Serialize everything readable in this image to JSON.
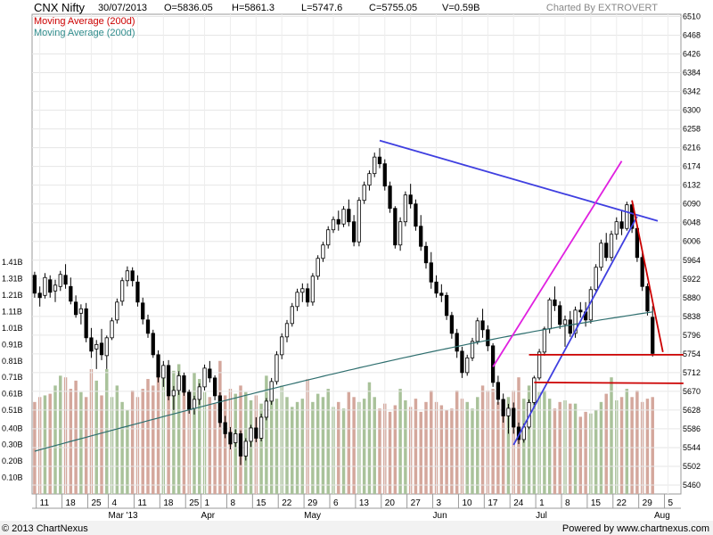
{
  "header": {
    "symbol": "CNX Nifty",
    "date": "30/07/2013",
    "open": "O=5836.05",
    "high": "H=5861.3",
    "low": "L=5747.6",
    "close": "C=5755.05",
    "volume": "V=0.59B",
    "charted_by": "Charted By EXTROVERT"
  },
  "legend": [
    {
      "label": "Moving Average (200d)",
      "color": "#cc0000"
    },
    {
      "label": "Moving Average (200d)",
      "color": "#2e8b8b"
    }
  ],
  "footer": {
    "copyright": "© 2013 ChartNexus",
    "powered": "Powered by www.chartnexus.com"
  },
  "colors": {
    "up_body": "#ffffff",
    "down_body": "#000000",
    "vol_up": "#a9c29a",
    "vol_down": "#d4a79c",
    "ma_line": "#2e6e6e",
    "trend_blue": "#3f3fe0",
    "trend_magenta": "#e020e0",
    "trend_red": "#cc0000"
  },
  "chart_data": {
    "type": "candlestick",
    "price_axis": {
      "ticks": [
        5460,
        5502,
        5544,
        5586,
        5628,
        5670,
        5712,
        5754,
        5796,
        5838,
        5880,
        5922,
        5964,
        6006,
        6048,
        6090,
        6132,
        6174,
        6216,
        6258,
        6300,
        6342,
        6384,
        6426,
        6468,
        6510
      ],
      "range": [
        5440,
        6515
      ]
    },
    "volume_axis": {
      "ticks": [
        "0.10B",
        "0.20B",
        "0.30B",
        "0.40B",
        "0.51B",
        "0.61B",
        "0.71B",
        "0.81B",
        "0.91B",
        "1.01B",
        "1.11B",
        "1.21B",
        "1.31B",
        "1.41B"
      ],
      "range": [
        0,
        1.46
      ]
    },
    "x_axis": {
      "day_labels": [
        {
          "i": 1,
          "t": "11"
        },
        {
          "i": 6,
          "t": "18"
        },
        {
          "i": 11,
          "t": "25"
        },
        {
          "i": 15,
          "t": "4"
        },
        {
          "i": 20,
          "t": "11"
        },
        {
          "i": 25,
          "t": "18"
        },
        {
          "i": 30,
          "t": "25"
        },
        {
          "i": 33,
          "t": "1"
        },
        {
          "i": 38,
          "t": "8"
        },
        {
          "i": 43,
          "t": "15"
        },
        {
          "i": 48,
          "t": "22"
        },
        {
          "i": 53,
          "t": "29"
        },
        {
          "i": 58,
          "t": "6"
        },
        {
          "i": 63,
          "t": "13"
        },
        {
          "i": 68,
          "t": "20"
        },
        {
          "i": 73,
          "t": "27"
        },
        {
          "i": 78,
          "t": "3"
        },
        {
          "i": 83,
          "t": "10"
        },
        {
          "i": 88,
          "t": "17"
        },
        {
          "i": 93,
          "t": "24"
        },
        {
          "i": 98,
          "t": "1"
        },
        {
          "i": 103,
          "t": "8"
        },
        {
          "i": 108,
          "t": "15"
        },
        {
          "i": 113,
          "t": "22"
        },
        {
          "i": 118,
          "t": "29"
        },
        {
          "i": 123,
          "t": "5"
        }
      ],
      "month_labels": [
        {
          "i": 15,
          "t": "Mar '13"
        },
        {
          "i": 33,
          "t": "Apr"
        },
        {
          "i": 53,
          "t": "May"
        },
        {
          "i": 78,
          "t": "Jun"
        },
        {
          "i": 98,
          "t": "Jul"
        },
        {
          "i": 121,
          "t": "Aug"
        }
      ],
      "slot_count": 126
    },
    "candles": [
      [
        5930,
        5938,
        5880,
        5890
      ],
      [
        5890,
        5905,
        5860,
        5880
      ],
      [
        5885,
        5935,
        5878,
        5925
      ],
      [
        5920,
        5930,
        5880,
        5892
      ],
      [
        5895,
        5920,
        5870,
        5908
      ],
      [
        5905,
        5940,
        5895,
        5932
      ],
      [
        5930,
        5955,
        5900,
        5910
      ],
      [
        5905,
        5925,
        5865,
        5872
      ],
      [
        5870,
        5885,
        5835,
        5842
      ],
      [
        5845,
        5865,
        5820,
        5855
      ],
      [
        5855,
        5868,
        5780,
        5790
      ],
      [
        5790,
        5812,
        5745,
        5760
      ],
      [
        5765,
        5785,
        5720,
        5775
      ],
      [
        5778,
        5810,
        5740,
        5752
      ],
      [
        5750,
        5795,
        5720,
        5790
      ],
      [
        5790,
        5835,
        5785,
        5828
      ],
      [
        5830,
        5878,
        5822,
        5870
      ],
      [
        5872,
        5925,
        5862,
        5918
      ],
      [
        5918,
        5950,
        5905,
        5940
      ],
      [
        5940,
        5948,
        5905,
        5918
      ],
      [
        5915,
        5930,
        5860,
        5870
      ],
      [
        5868,
        5880,
        5820,
        5832
      ],
      [
        5830,
        5842,
        5790,
        5800
      ],
      [
        5800,
        5808,
        5745,
        5752
      ],
      [
        5752,
        5762,
        5690,
        5702
      ],
      [
        5700,
        5738,
        5680,
        5728
      ],
      [
        5728,
        5740,
        5650,
        5660
      ],
      [
        5660,
        5682,
        5628,
        5672
      ],
      [
        5672,
        5715,
        5662,
        5705
      ],
      [
        5705,
        5712,
        5660,
        5668
      ],
      [
        5668,
        5674,
        5620,
        5630
      ],
      [
        5632,
        5660,
        5618,
        5652
      ],
      [
        5652,
        5688,
        5640,
        5680
      ],
      [
        5680,
        5730,
        5672,
        5722
      ],
      [
        5720,
        5738,
        5690,
        5700
      ],
      [
        5700,
        5706,
        5650,
        5660
      ],
      [
        5660,
        5668,
        5590,
        5600
      ],
      [
        5600,
        5615,
        5565,
        5575
      ],
      [
        5578,
        5590,
        5540,
        5552
      ],
      [
        5555,
        5585,
        5545,
        5575
      ],
      [
        5575,
        5582,
        5505,
        5525
      ],
      [
        5525,
        5565,
        5515,
        5558
      ],
      [
        5558,
        5595,
        5545,
        5588
      ],
      [
        5588,
        5612,
        5556,
        5565
      ],
      [
        5565,
        5620,
        5558,
        5612
      ],
      [
        5612,
        5655,
        5605,
        5648
      ],
      [
        5648,
        5700,
        5640,
        5692
      ],
      [
        5692,
        5760,
        5685,
        5752
      ],
      [
        5752,
        5800,
        5742,
        5792
      ],
      [
        5792,
        5830,
        5780,
        5822
      ],
      [
        5822,
        5868,
        5815,
        5860
      ],
      [
        5860,
        5900,
        5850,
        5892
      ],
      [
        5892,
        5912,
        5870,
        5900
      ],
      [
        5900,
        5912,
        5860,
        5870
      ],
      [
        5870,
        5935,
        5862,
        5928
      ],
      [
        5928,
        5975,
        5920,
        5968
      ],
      [
        5968,
        6005,
        5960,
        5998
      ],
      [
        5998,
        6040,
        5990,
        6032
      ],
      [
        6032,
        6062,
        6025,
        6055
      ],
      [
        6055,
        6075,
        6030,
        6045
      ],
      [
        6045,
        6085,
        6038,
        6078
      ],
      [
        6078,
        6100,
        6040,
        6050
      ],
      [
        6050,
        6065,
        5995,
        6005
      ],
      [
        6005,
        6105,
        5995,
        6098
      ],
      [
        6098,
        6140,
        6090,
        6132
      ],
      [
        6132,
        6165,
        6120,
        6158
      ],
      [
        6158,
        6205,
        6150,
        6195
      ],
      [
        6195,
        6215,
        6170,
        6180
      ],
      [
        6180,
        6190,
        6120,
        6130
      ],
      [
        6130,
        6140,
        6070,
        6080
      ],
      [
        6080,
        6085,
        5990,
        5998
      ],
      [
        5998,
        6060,
        5985,
        6050
      ],
      [
        6050,
        6118,
        6040,
        6110
      ],
      [
        6110,
        6135,
        6080,
        6090
      ],
      [
        6090,
        6100,
        6030,
        6040
      ],
      [
        6040,
        6065,
        5985,
        5995
      ],
      [
        5995,
        6005,
        5945,
        5958
      ],
      [
        5958,
        5982,
        5900,
        5915
      ],
      [
        5915,
        5930,
        5880,
        5890
      ],
      [
        5890,
        5910,
        5870,
        5885
      ],
      [
        5885,
        5892,
        5830,
        5840
      ],
      [
        5840,
        5848,
        5788,
        5800
      ],
      [
        5800,
        5810,
        5745,
        5760
      ],
      [
        5760,
        5770,
        5700,
        5712
      ],
      [
        5712,
        5752,
        5705,
        5745
      ],
      [
        5745,
        5790,
        5738,
        5782
      ],
      [
        5782,
        5835,
        5775,
        5828
      ],
      [
        5828,
        5855,
        5790,
        5808
      ],
      [
        5808,
        5818,
        5760,
        5772
      ],
      [
        5772,
        5778,
        5680,
        5690
      ],
      [
        5690,
        5705,
        5640,
        5652
      ],
      [
        5652,
        5665,
        5600,
        5615
      ],
      [
        5615,
        5642,
        5575,
        5632
      ],
      [
        5632,
        5645,
        5575,
        5590
      ],
      [
        5590,
        5600,
        5552,
        5562
      ],
      [
        5562,
        5598,
        5555,
        5590
      ],
      [
        5590,
        5652,
        5585,
        5645
      ],
      [
        5645,
        5705,
        5640,
        5700
      ],
      [
        5700,
        5765,
        5695,
        5758
      ],
      [
        5758,
        5815,
        5750,
        5810
      ],
      [
        5810,
        5880,
        5800,
        5875
      ],
      [
        5875,
        5905,
        5850,
        5862
      ],
      [
        5862,
        5872,
        5810,
        5820
      ],
      [
        5820,
        5840,
        5770,
        5830
      ],
      [
        5830,
        5850,
        5792,
        5800
      ],
      [
        5800,
        5860,
        5790,
        5852
      ],
      [
        5852,
        5870,
        5835,
        5848
      ],
      [
        5848,
        5870,
        5815,
        5830
      ],
      [
        5830,
        5905,
        5822,
        5898
      ],
      [
        5898,
        5955,
        5890,
        5948
      ],
      [
        5948,
        6010,
        5940,
        6002
      ],
      [
        6002,
        6025,
        5962,
        5970
      ],
      [
        5970,
        6030,
        5962,
        6022
      ],
      [
        6022,
        6060,
        6010,
        6050
      ],
      [
        6050,
        6075,
        6020,
        6035
      ],
      [
        6035,
        6095,
        6030,
        6088
      ],
      [
        6088,
        6090,
        6025,
        6035
      ],
      [
        6035,
        6040,
        5960,
        5970
      ],
      [
        5970,
        5980,
        5895,
        5905
      ],
      [
        5905,
        5912,
        5840,
        5850
      ],
      [
        5836,
        5861,
        5748,
        5755
      ]
    ],
    "volumes": [
      0.56,
      0.59,
      0.6,
      0.61,
      0.66,
      0.72,
      0.71,
      0.64,
      0.69,
      0.62,
      0.59,
      0.76,
      0.69,
      0.6,
      0.76,
      0.59,
      0.66,
      0.56,
      0.51,
      0.63,
      0.59,
      0.64,
      0.7,
      0.66,
      0.72,
      0.76,
      0.71,
      0.75,
      0.79,
      0.65,
      0.61,
      0.74,
      0.7,
      0.62,
      0.59,
      0.55,
      0.81,
      0.6,
      0.64,
      0.61,
      0.66,
      0.62,
      0.57,
      0.6,
      0.55,
      0.72,
      0.6,
      0.58,
      0.66,
      0.59,
      0.53,
      0.56,
      0.58,
      0.7,
      0.56,
      0.61,
      0.59,
      0.64,
      0.53,
      0.56,
      0.52,
      0.62,
      0.59,
      0.56,
      0.58,
      0.68,
      0.59,
      0.52,
      0.55,
      0.5,
      0.54,
      0.64,
      0.57,
      0.53,
      0.58,
      0.5,
      0.56,
      0.63,
      0.56,
      0.54,
      0.51,
      0.52,
      0.63,
      0.58,
      0.56,
      0.52,
      0.59,
      0.66,
      0.63,
      0.64,
      0.56,
      0.5,
      0.59,
      0.63,
      0.71,
      0.58,
      0.66,
      0.69,
      0.62,
      0.63,
      0.58,
      0.52,
      0.56,
      0.57,
      0.55,
      0.55,
      0.47,
      0.5,
      0.49,
      0.51,
      0.56,
      0.61,
      0.71,
      0.57,
      0.59,
      0.64,
      0.59,
      0.63,
      0.56,
      0.58,
      0.59
    ]
  }
}
